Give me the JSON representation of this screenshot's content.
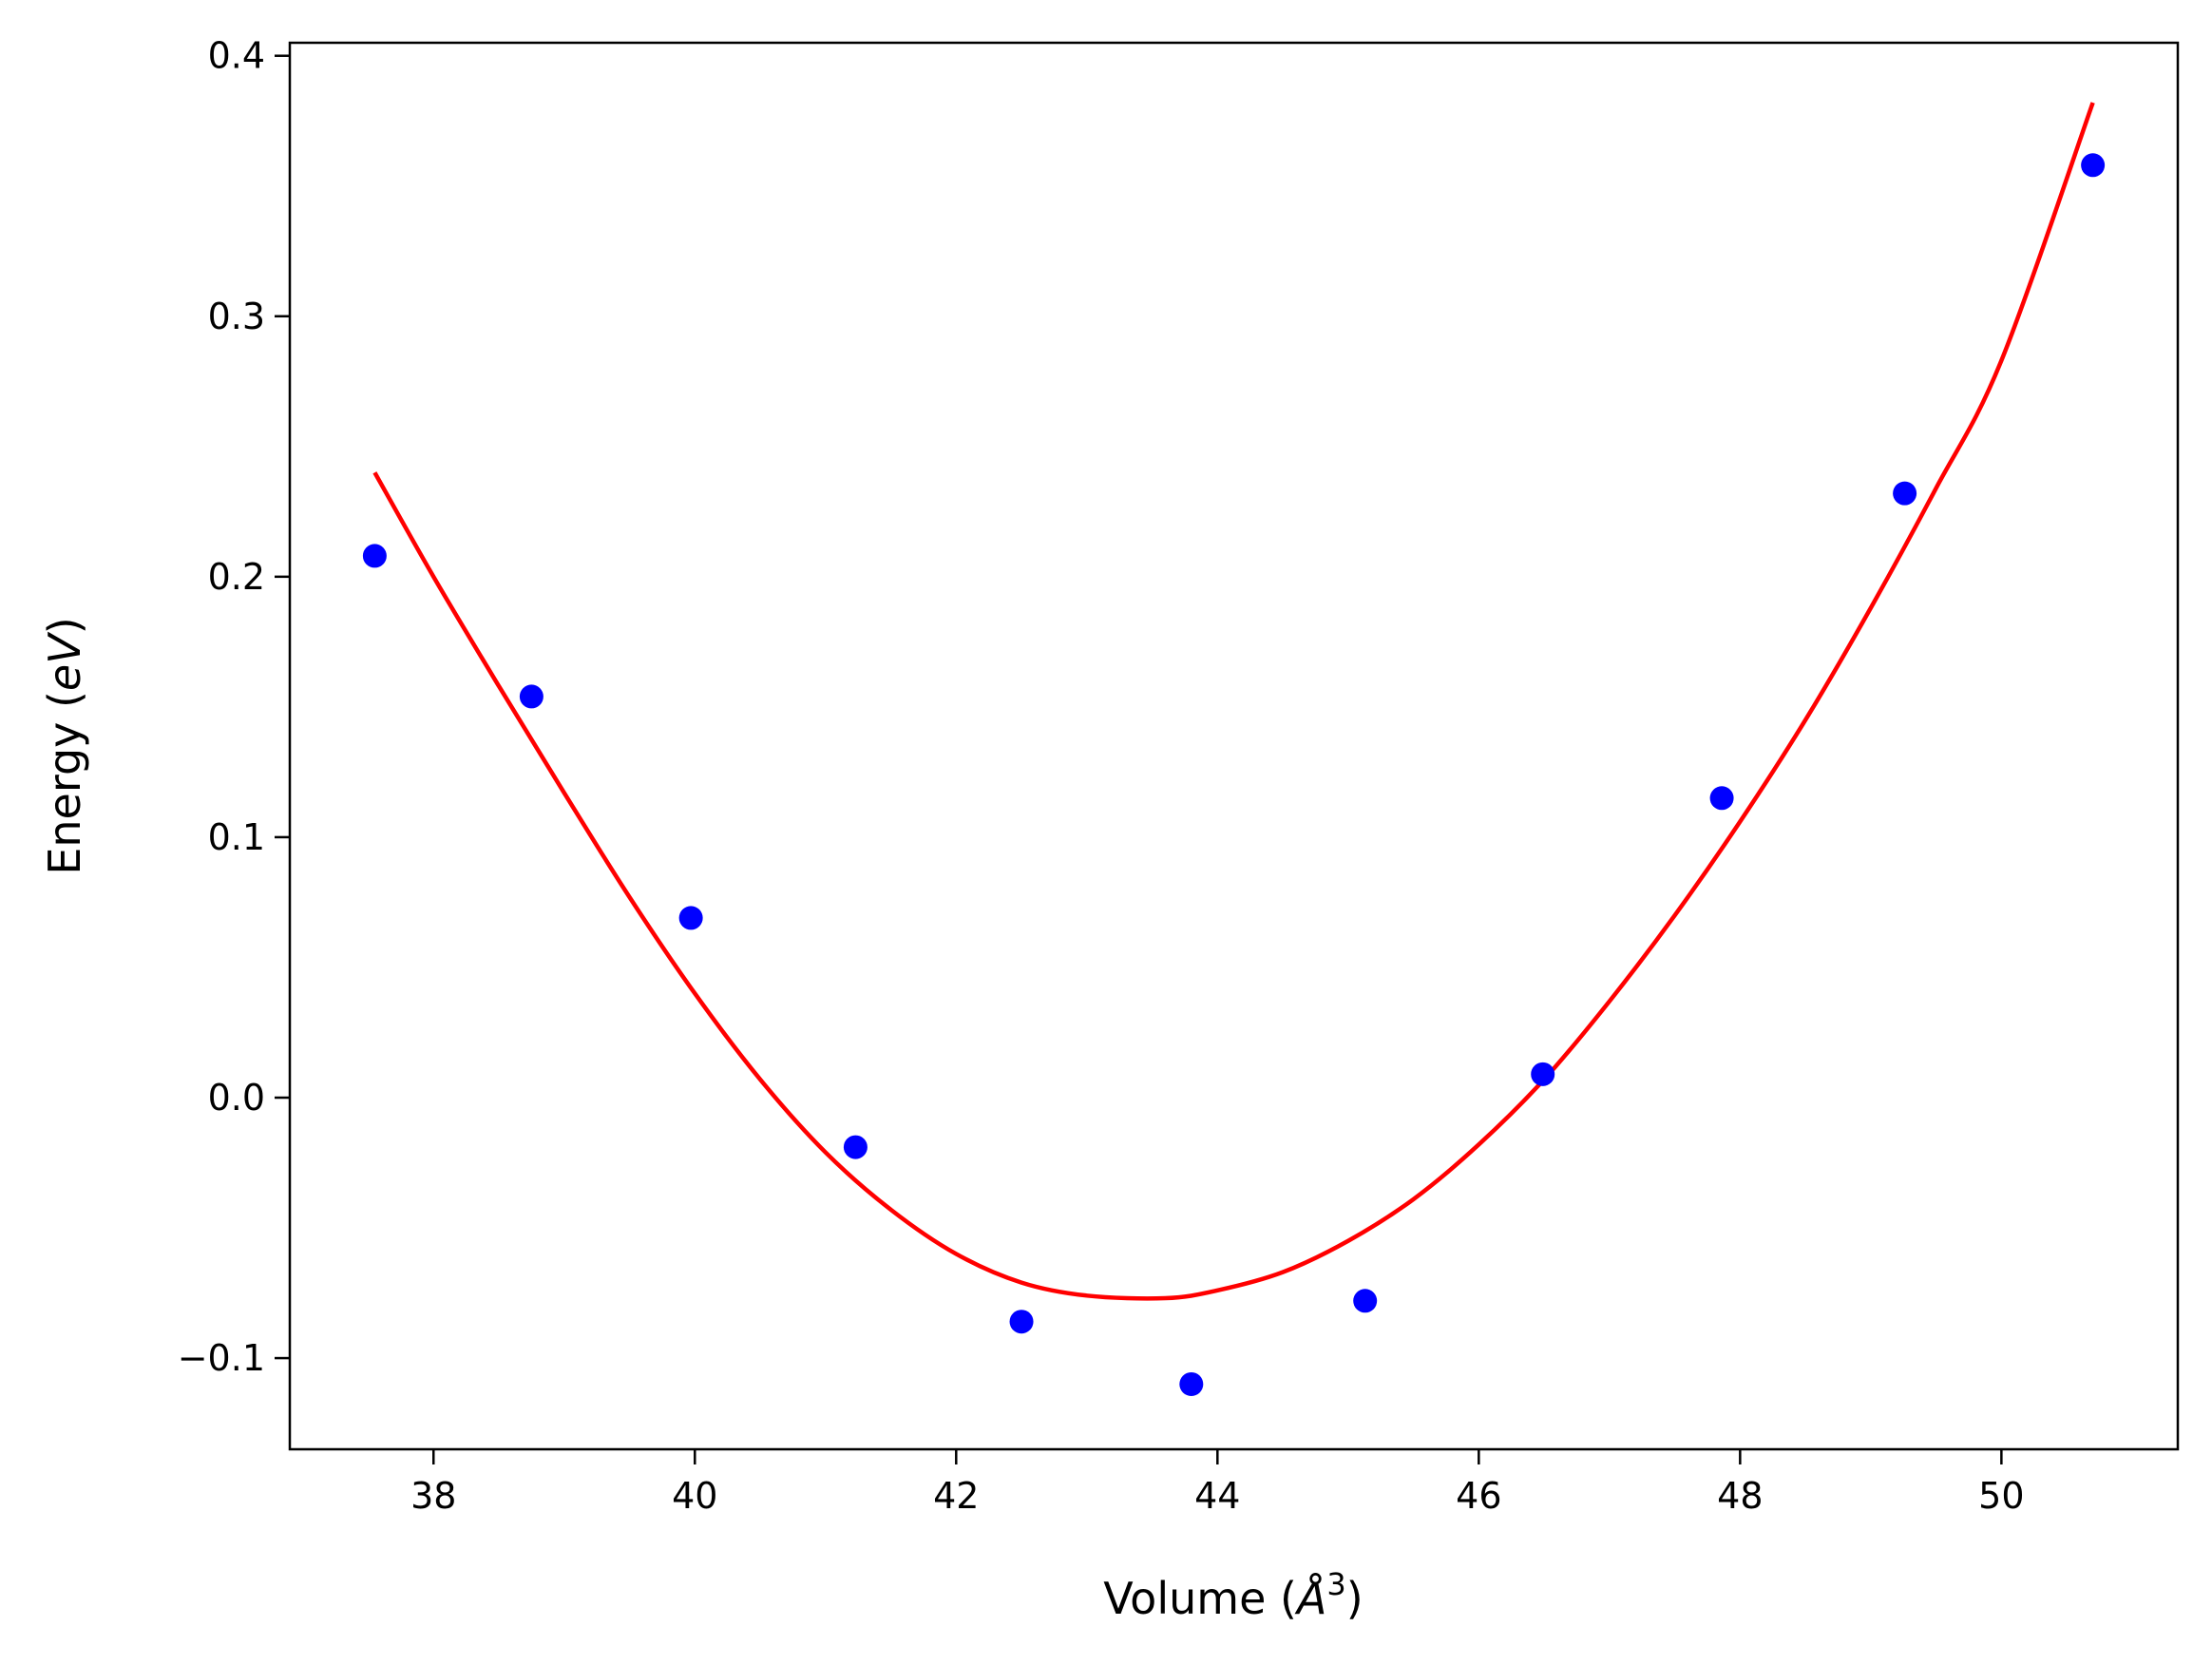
{
  "chart_data": {
    "type": "scatter",
    "title": "",
    "xlabel": {
      "text": "Volume (",
      "symbol": "Å",
      "superscript": "3",
      "suffix": ")"
    },
    "ylabel": {
      "text": "Energy (",
      "italic": "eV",
      "suffix": ")"
    },
    "xlim": [
      36.9,
      51.35
    ],
    "ylim": [
      -0.135,
      0.405
    ],
    "x_ticks": [
      38,
      40,
      42,
      44,
      46,
      48,
      50
    ],
    "x_tick_labels": [
      "38",
      "40",
      "42",
      "44",
      "46",
      "48",
      "50"
    ],
    "y_ticks": [
      -0.1,
      0.0,
      0.1,
      0.2,
      0.3,
      0.4
    ],
    "y_tick_labels": [
      "−0.1",
      "0.0",
      "0.1",
      "0.2",
      "0.3",
      "0.4"
    ],
    "grid": false,
    "series": [
      {
        "kind": "points",
        "color": "#0000ff",
        "x": [
          37.55,
          38.75,
          39.97,
          41.23,
          42.5,
          43.8,
          45.13,
          46.49,
          47.86,
          49.26,
          50.7
        ],
        "y": [
          0.208,
          0.154,
          0.069,
          -0.019,
          -0.086,
          -0.11,
          -0.078,
          0.009,
          0.115,
          0.232,
          0.358
        ]
      },
      {
        "kind": "fit-line",
        "color": "#ff0000",
        "x": [
          37.55,
          38.0,
          38.5,
          39.0,
          39.5,
          40.0,
          40.5,
          41.0,
          41.5,
          42.0,
          42.5,
          43.0,
          43.6,
          44.0,
          44.5,
          45.0,
          45.5,
          46.0,
          46.5,
          47.0,
          47.5,
          48.0,
          48.5,
          49.0,
          49.5,
          50.0,
          50.7
        ],
        "y": [
          0.24,
          0.2,
          0.158,
          0.117,
          0.077,
          0.04,
          0.007,
          -0.021,
          -0.043,
          -0.06,
          -0.071,
          -0.076,
          -0.077,
          -0.074,
          -0.067,
          -0.055,
          -0.039,
          -0.018,
          0.007,
          0.037,
          0.07,
          0.106,
          0.145,
          0.188,
          0.234,
          0.283,
          0.382
        ]
      }
    ],
    "style": {
      "axis_color": "#000000",
      "background": "#ffffff"
    }
  }
}
